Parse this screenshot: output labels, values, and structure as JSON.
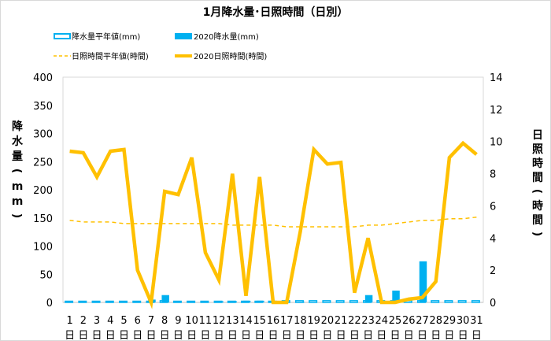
{
  "chart_data": {
    "type": "bar+line",
    "title": "1月降水量･日照時間（日別）",
    "categories": [
      "1",
      "2",
      "3",
      "4",
      "5",
      "6",
      "7",
      "8",
      "9",
      "10",
      "11",
      "12",
      "13",
      "14",
      "15",
      "16",
      "17",
      "18",
      "19",
      "20",
      "21",
      "22",
      "23",
      "24",
      "25",
      "26",
      "27",
      "28",
      "29",
      "30",
      "31"
    ],
    "day_suffix": "日",
    "ylabel_left": "降水量（mm）",
    "ylabel_right": "日照時間（時間）",
    "ylim_left": [
      0,
      400
    ],
    "yticks_left": [
      0,
      50,
      100,
      150,
      200,
      250,
      300,
      350,
      400
    ],
    "ylim_right": [
      0,
      14
    ],
    "yticks_right": [
      0,
      2,
      4,
      6,
      8,
      10,
      12,
      14
    ],
    "legend_placement": "top",
    "series": [
      {
        "name": "降水量平年値(mm)",
        "type": "bar",
        "axis": "left",
        "style": "outline",
        "color": "#00b0f0",
        "values": [
          2,
          2,
          2,
          2,
          2,
          2,
          2,
          3,
          2,
          2,
          2,
          2,
          2,
          2,
          2,
          2,
          3,
          3,
          3,
          3,
          3,
          3,
          3,
          3,
          3,
          3,
          3,
          3,
          3,
          3,
          3
        ]
      },
      {
        "name": "2020降水量(mm)",
        "type": "bar",
        "axis": "left",
        "style": "solid",
        "color": "#00b0f0",
        "values": [
          0,
          0,
          0,
          0,
          0,
          0,
          5,
          13,
          0,
          0,
          0,
          2,
          2,
          3,
          3,
          0,
          0,
          1,
          0,
          0,
          0,
          0,
          13,
          2,
          21,
          0,
          73,
          0,
          0,
          0,
          0
        ]
      },
      {
        "name": "日照時間平年値(時間)",
        "type": "line",
        "axis": "right",
        "style": "dashed",
        "color": "#ffc000",
        "values": [
          5.1,
          5.0,
          5.0,
          5.0,
          4.9,
          4.9,
          4.9,
          4.9,
          4.9,
          4.9,
          4.9,
          4.9,
          4.8,
          4.8,
          4.8,
          4.8,
          4.7,
          4.7,
          4.7,
          4.7,
          4.7,
          4.7,
          4.8,
          4.8,
          4.9,
          5.0,
          5.1,
          5.1,
          5.2,
          5.2,
          5.3
        ]
      },
      {
        "name": "2020日照時間(時間)",
        "type": "line",
        "axis": "right",
        "style": "solid",
        "color": "#ffc000",
        "values": [
          9.4,
          9.3,
          7.8,
          9.4,
          9.5,
          2.0,
          0.0,
          6.9,
          6.7,
          9.0,
          3.1,
          1.4,
          8.0,
          0.4,
          7.8,
          0.0,
          0.0,
          4.4,
          9.5,
          8.6,
          8.7,
          0.6,
          4.0,
          0.0,
          0.0,
          0.2,
          0.3,
          1.3,
          9.0,
          9.9,
          9.2
        ]
      }
    ]
  }
}
